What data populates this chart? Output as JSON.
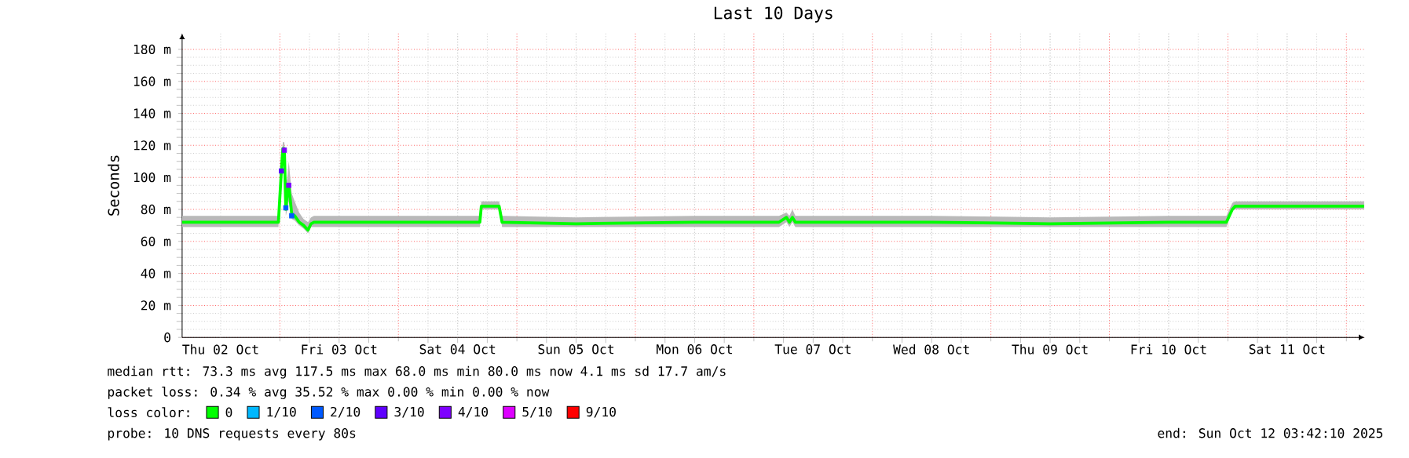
{
  "chart_data": {
    "type": "line",
    "title": "Last 10 Days",
    "ylabel": "Seconds",
    "legend_title": "loss color:",
    "xlim": [
      "2025-10-02T04:12",
      "2025-10-12T03:42"
    ],
    "xticks": [
      {
        "value": "2025-10-03T00:00",
        "label": null
      },
      {
        "value": "2025-10-04T00:00",
        "label": null
      },
      {
        "value": "2025-10-05T00:00",
        "label": null
      },
      {
        "value": "2025-10-06T00:00",
        "label": null
      },
      {
        "value": "2025-10-07T00:00",
        "label": null
      },
      {
        "value": "2025-10-08T00:00",
        "label": null
      },
      {
        "value": "2025-10-09T00:00",
        "label": null
      },
      {
        "value": "2025-10-10T00:00",
        "label": null
      },
      {
        "value": "2025-10-11T00:00",
        "label": null
      },
      {
        "value": "2025-10-12T00:00",
        "label": null
      },
      {
        "value": "2025-10-02T12:00",
        "label": "Thu 02 Oct"
      },
      {
        "value": "2025-10-03T12:00",
        "label": "Fri 03 Oct"
      },
      {
        "value": "2025-10-04T12:00",
        "label": "Sat 04 Oct"
      },
      {
        "value": "2025-10-05T12:00",
        "label": "Sun 05 Oct"
      },
      {
        "value": "2025-10-06T12:00",
        "label": "Mon 06 Oct"
      },
      {
        "value": "2025-10-07T12:00",
        "label": "Tue 07 Oct"
      },
      {
        "value": "2025-10-08T12:00",
        "label": "Wed 08 Oct"
      },
      {
        "value": "2025-10-09T12:00",
        "label": "Thu 09 Oct"
      },
      {
        "value": "2025-10-10T12:00",
        "label": "Fri 10 Oct"
      },
      {
        "value": "2025-10-11T12:00",
        "label": "Sat 11 Oct"
      }
    ],
    "ylim": [
      0,
      190
    ],
    "yticks": [
      0,
      {
        "value": 20,
        "label": "20 m"
      },
      {
        "value": 40,
        "label": "40 m"
      },
      {
        "value": 60,
        "label": "60 m"
      },
      {
        "value": 80,
        "label": "80 m"
      },
      {
        "value": 100,
        "label": "100 m"
      },
      {
        "value": 120,
        "label": "120 m"
      },
      {
        "value": 140,
        "label": "140 m"
      },
      {
        "value": 160,
        "label": "160 m"
      },
      {
        "value": 180,
        "label": "180 m"
      }
    ],
    "grid": true,
    "legend": "bottom",
    "series": [
      {
        "name": "0",
        "color": "#00ff00",
        "x": [
          "2025-10-02T04:12",
          "2025-10-02T12:00",
          "2025-10-02T23:42",
          "2025-10-03T00:18",
          "2025-10-03T00:36",
          "2025-10-03T00:54",
          "2025-10-03T01:12",
          "2025-10-03T01:30",
          "2025-10-03T01:48",
          "2025-10-03T02:24",
          "2025-10-03T03:00",
          "2025-10-03T03:54",
          "2025-10-03T04:48",
          "2025-10-03T05:42",
          "2025-10-03T06:18",
          "2025-10-03T06:54",
          "2025-10-04T16:30",
          "2025-10-04T16:48",
          "2025-10-04T20:24",
          "2025-10-04T21:00",
          "2025-10-05T12:00",
          "2025-10-06T12:00",
          "2025-10-07T05:06",
          "2025-10-07T06:36",
          "2025-10-07T07:12",
          "2025-10-07T07:48",
          "2025-10-07T08:24",
          "2025-10-08T12:00",
          "2025-10-09T12:00",
          "2025-10-10T12:00",
          "2025-10-10T23:42",
          "2025-10-11T00:54",
          "2025-10-11T01:30",
          "2025-10-12T03:36"
        ],
        "values": [
          72,
          72,
          72,
          104,
          118,
          118,
          80,
          90,
          95,
          77,
          76,
          72,
          70,
          67,
          71,
          72,
          72,
          82,
          82,
          72,
          71,
          72,
          72,
          75,
          72,
          75,
          72,
          72,
          71,
          72,
          72,
          80,
          82,
          82
        ],
        "lower": [
          69,
          69,
          69,
          100,
          112,
          110,
          76,
          80,
          85,
          74,
          73,
          70,
          68,
          65,
          69,
          69,
          69,
          80,
          80,
          69,
          69,
          69,
          69,
          72,
          69,
          72,
          69,
          69,
          69,
          69,
          69,
          79,
          80,
          80
        ],
        "upper": [
          76,
          76,
          76,
          110,
          122,
          122,
          95,
          100,
          110,
          90,
          85,
          78,
          74,
          72,
          75,
          76,
          76,
          85,
          85,
          76,
          75,
          76,
          76,
          78,
          76,
          80,
          76,
          76,
          75,
          76,
          76,
          84,
          85,
          85
        ]
      },
      {
        "name": "1/10",
        "color": "#00b8ff"
      },
      {
        "name": "2/10",
        "color": "#0059ff",
        "type": "scatter",
        "marker": "square",
        "x": [
          "2025-10-03T01:12",
          "2025-10-03T02:24"
        ],
        "values": [
          81,
          76
        ]
      },
      {
        "name": "3/10",
        "color": "#5e00ff",
        "type": "scatter",
        "marker": "square",
        "x": [
          "2025-10-03T00:18"
        ],
        "values": [
          104
        ]
      },
      {
        "name": "4/10",
        "color": "#7e00ff",
        "type": "scatter",
        "marker": "square",
        "x": [
          "2025-10-03T00:54",
          "2025-10-03T01:48"
        ],
        "values": [
          117,
          95
        ]
      },
      {
        "name": "5/10",
        "color": "#dd00ff"
      },
      {
        "name": "9/10",
        "color": "#ff0000"
      }
    ],
    "annotations": [
      "median rtt:  73.3 ms avg  117.5 ms max  68.0 ms min  80.0 ms now  4.1 ms sd  17.7   am/s",
      "packet loss: 0.34 % avg  35.52 % max  0.00 % min  0.00 % now",
      "probe:       10 DNS requests every 80s",
      "end: Sun Oct 12 03:42:10 2025"
    ]
  }
}
